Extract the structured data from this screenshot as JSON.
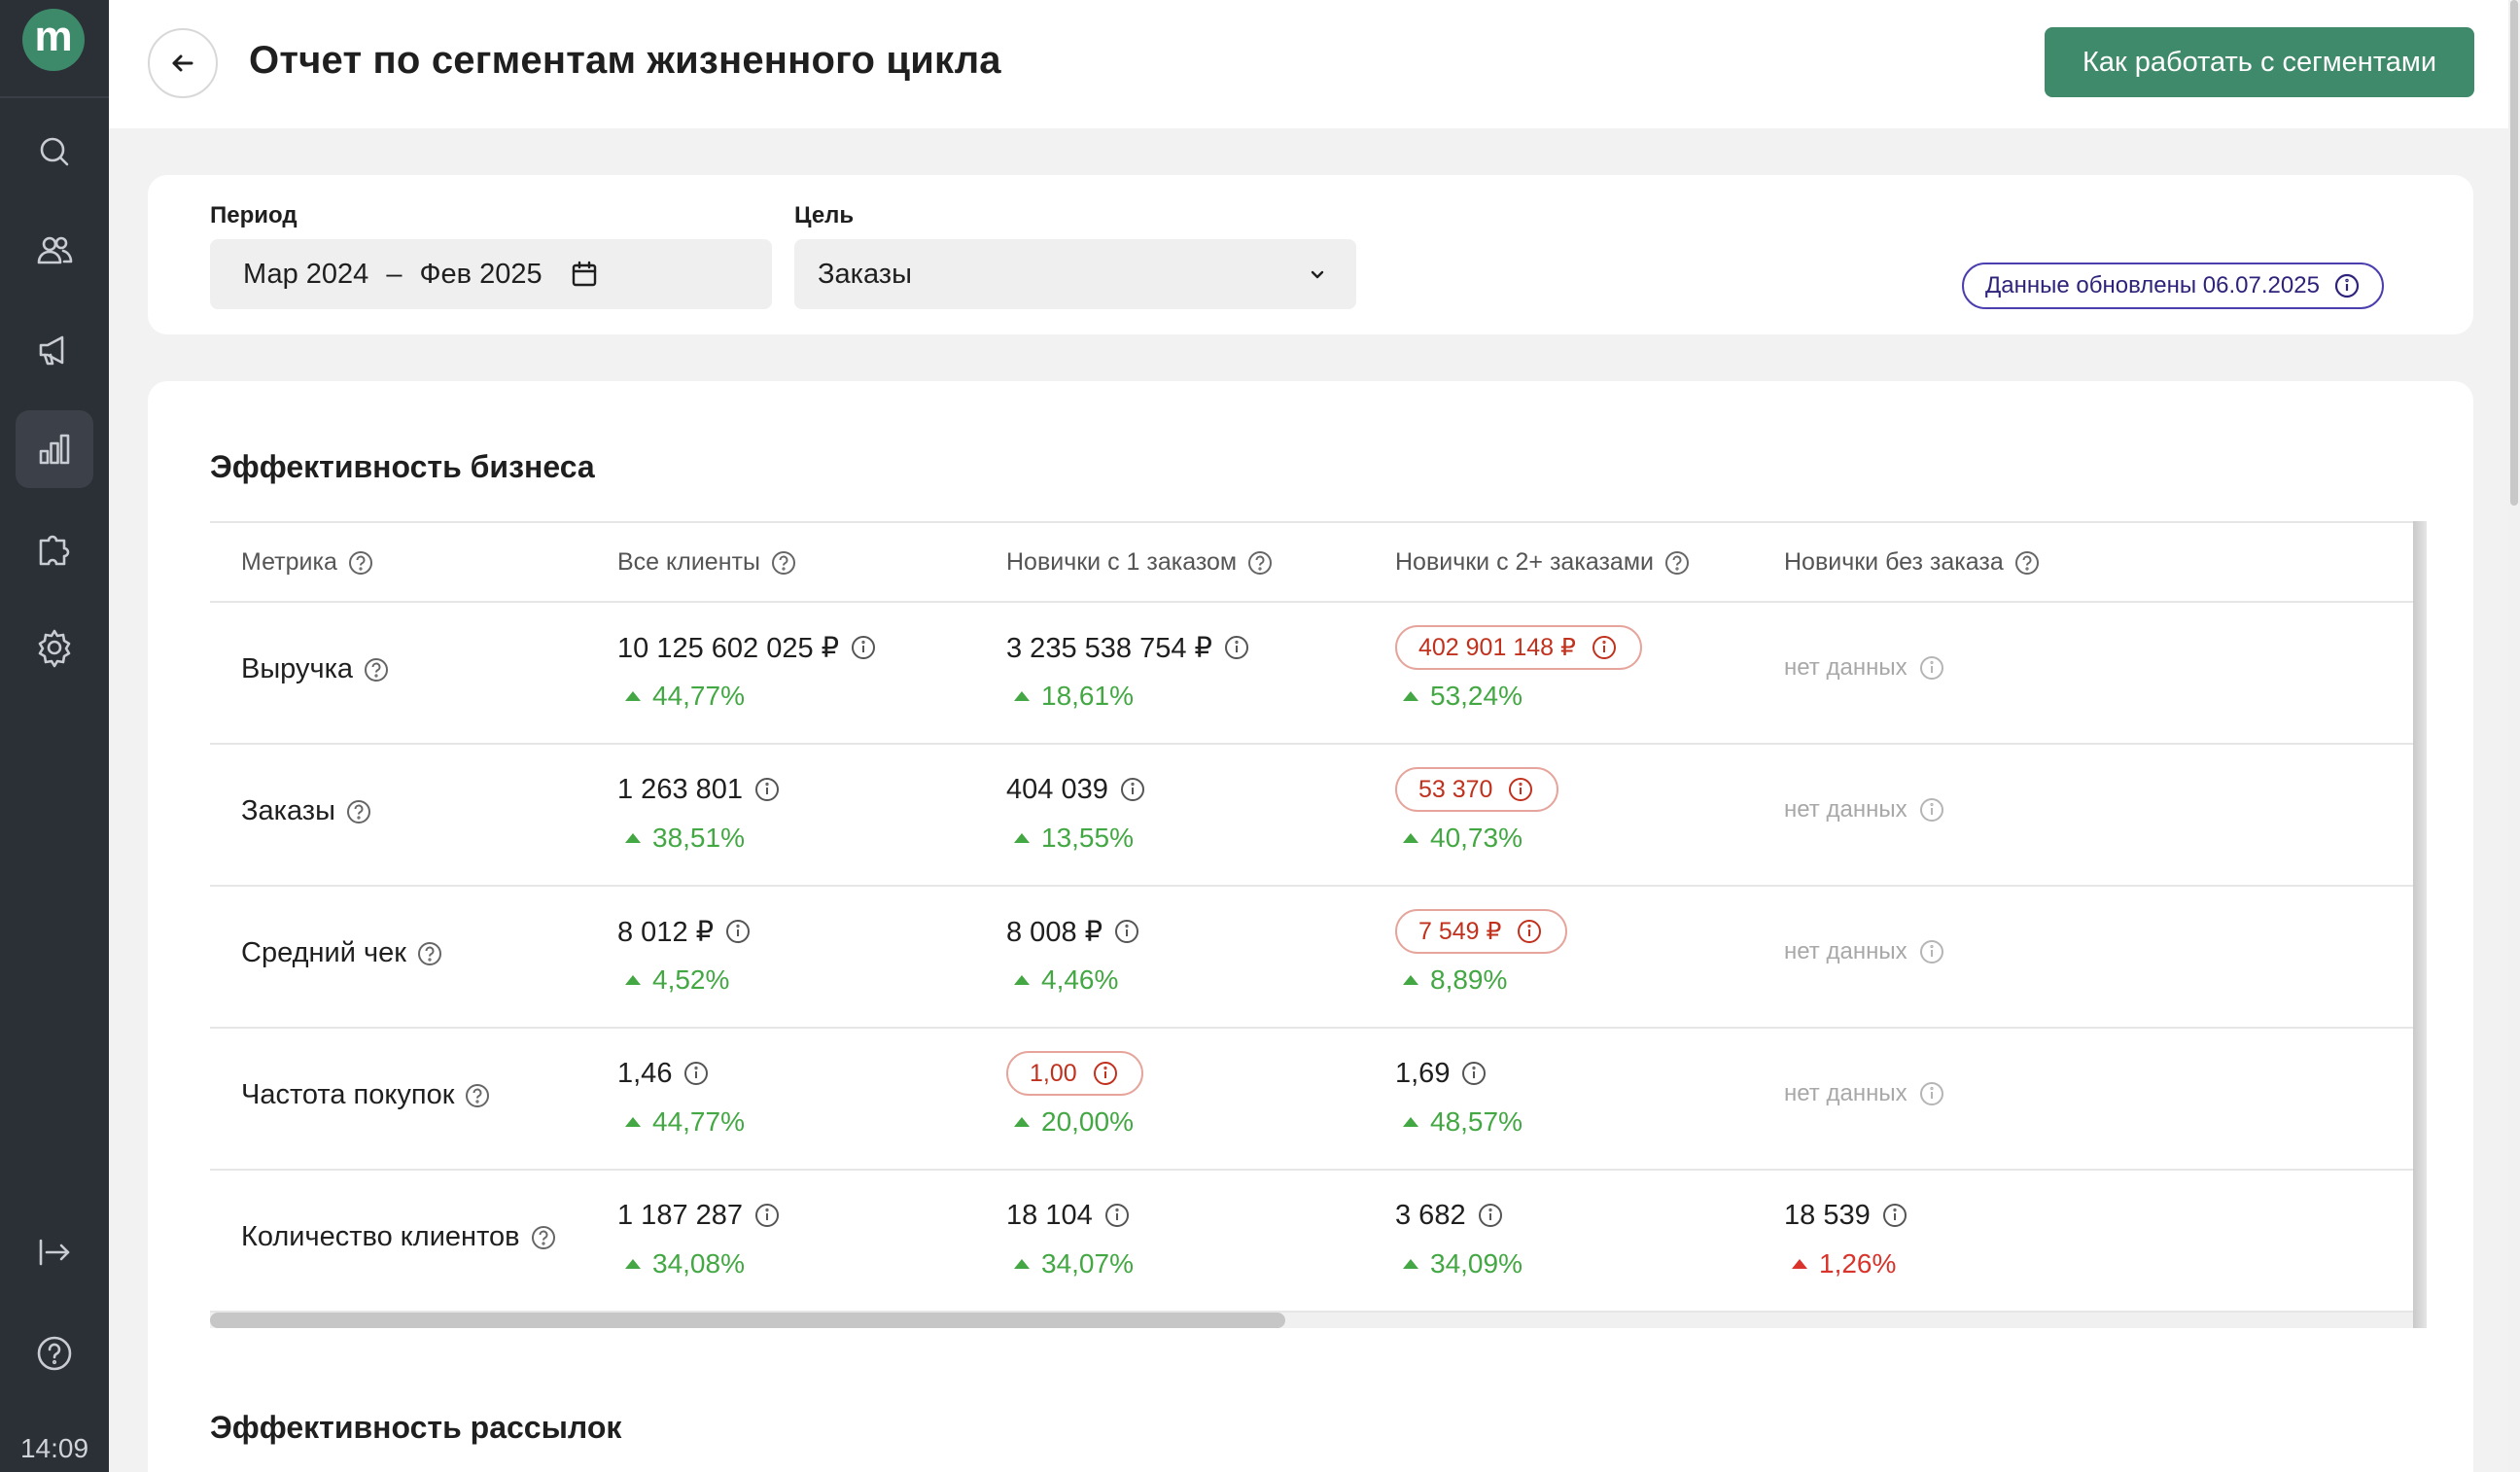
{
  "sidebar": {
    "logo": "m",
    "time": "14:09",
    "items": [
      {
        "icon": "search-icon"
      },
      {
        "icon": "users-icon"
      },
      {
        "icon": "megaphone-icon"
      },
      {
        "icon": "bar-chart-icon",
        "active": true
      },
      {
        "icon": "puzzle-icon"
      },
      {
        "icon": "gear-icon"
      },
      {
        "icon": "logout-icon"
      },
      {
        "icon": "help-icon"
      }
    ]
  },
  "header": {
    "title": "Отчет по сегментам жизненного цикла",
    "help_button": "Как работать с сегментами"
  },
  "filters": {
    "period_label": "Период",
    "period_from": "Мар 2024",
    "period_sep": "–",
    "period_to": "Фев 2025",
    "goal_label": "Цель",
    "goal_value": "Заказы",
    "updated": "Данные обновлены 06.07.2025"
  },
  "business": {
    "title": "Эффективность бизнеса",
    "columns": [
      "Метрика",
      "Все клиенты",
      "Новички с 1 заказом",
      "Новички с 2+ заказами",
      "Новички без заказа"
    ],
    "no_data": "нет данных",
    "rows": [
      {
        "metric": "Выручка",
        "cells": [
          {
            "value": "10 125 602 025 ₽",
            "delta": "44,77%"
          },
          {
            "value": "3 235 538 754 ₽",
            "delta": "18,61%"
          },
          {
            "value": "402 901 148 ₽",
            "delta": "53,24%",
            "warn": true
          },
          null
        ]
      },
      {
        "metric": "Заказы",
        "cells": [
          {
            "value": "1 263 801",
            "delta": "38,51%"
          },
          {
            "value": "404 039",
            "delta": "13,55%"
          },
          {
            "value": "53 370",
            "delta": "40,73%",
            "warn": true
          },
          null
        ]
      },
      {
        "metric": "Средний чек",
        "cells": [
          {
            "value": "8 012 ₽",
            "delta": "4,52%"
          },
          {
            "value": "8 008 ₽",
            "delta": "4,46%"
          },
          {
            "value": "7 549 ₽",
            "delta": "8,89%",
            "warn": true
          },
          null
        ]
      },
      {
        "metric": "Частота покупок",
        "cells": [
          {
            "value": "1,46",
            "delta": "44,77%"
          },
          {
            "value": "1,00",
            "delta": "20,00%",
            "warn": true
          },
          {
            "value": "1,69",
            "delta": "48,57%"
          },
          null
        ]
      },
      {
        "metric": "Количество клиентов",
        "cells": [
          {
            "value": "1 187 287",
            "delta": "34,08%"
          },
          {
            "value": "18 104",
            "delta": "34,07%"
          },
          {
            "value": "3 682",
            "delta": "34,09%"
          },
          {
            "value": "18 539",
            "delta": "1,26%",
            "negative": true
          }
        ]
      }
    ]
  },
  "mailings": {
    "title": "Эффективность рассылок"
  }
}
